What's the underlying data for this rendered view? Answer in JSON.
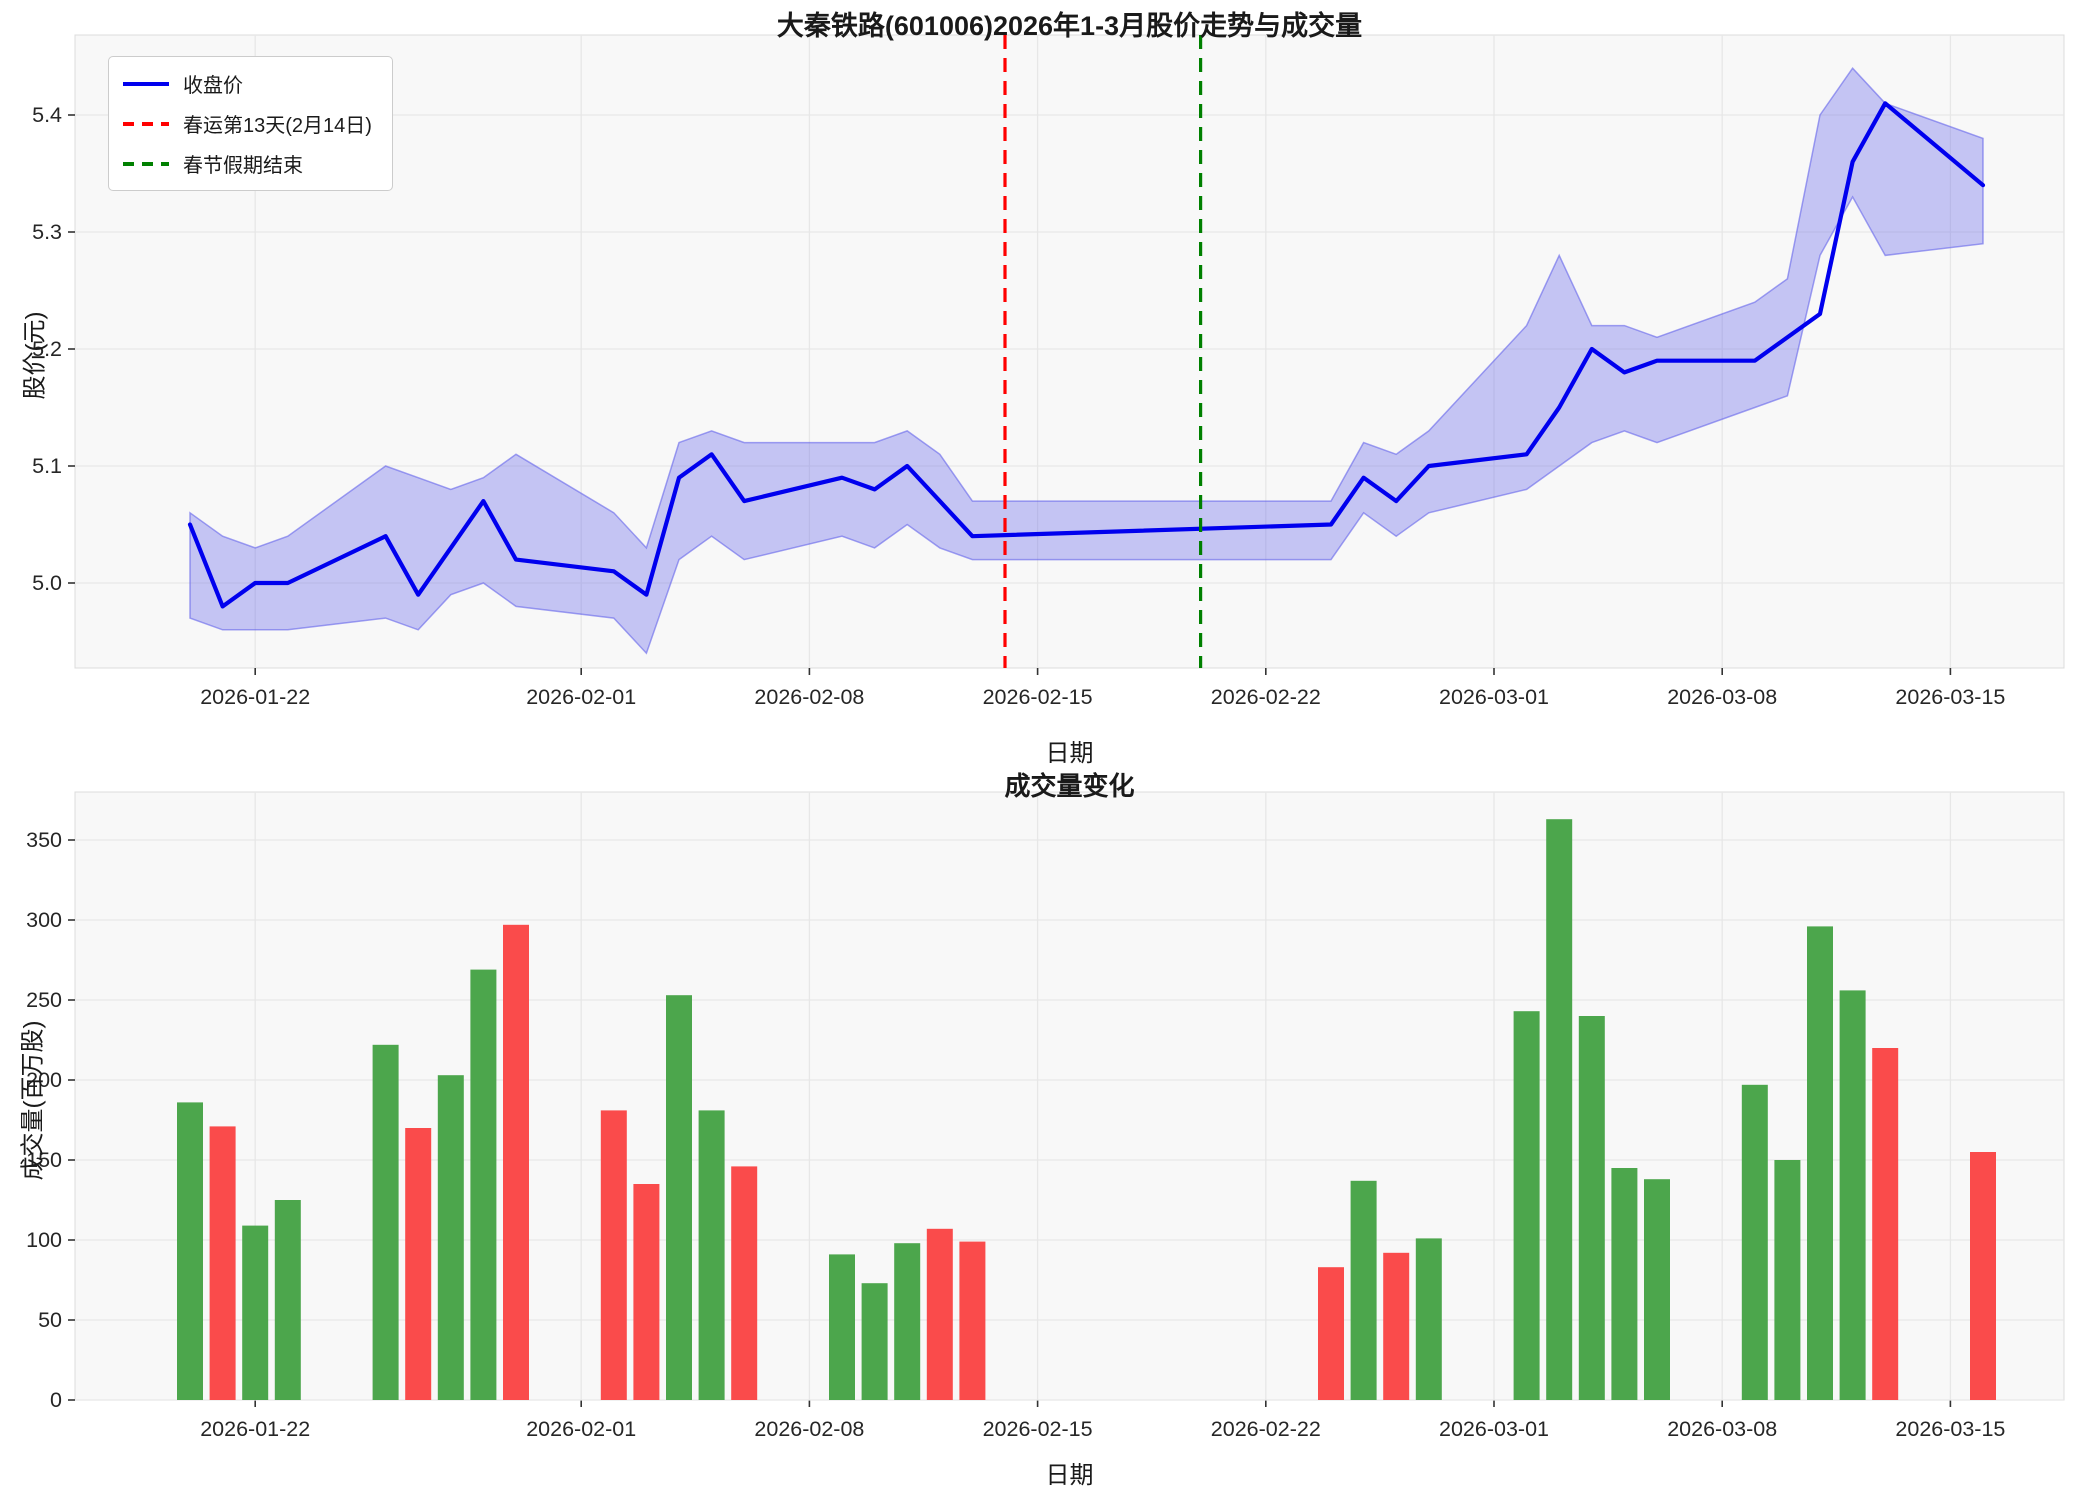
{
  "title": "大秦铁路(601006)2026年1-3月股价走势与成交量",
  "colors": {
    "price_line": "#0000ee",
    "band_fill": "rgba(100,100,235,0.35)",
    "band_edge": "rgba(100,100,235,0.6)",
    "chunyun_line": "#ff0000",
    "holiday_line": "#008000",
    "volume_up": "#4ca64c",
    "volume_down": "#fa4b4b",
    "plot_bg": "#f8f8f8",
    "plot_border": "#dcdcdc",
    "grid": "#e7e7e7",
    "tick": "#333333",
    "text": "#262626"
  },
  "chart_data": [
    {
      "type": "line",
      "title": "大秦铁路(601006)2026年1-3月股价走势与成交量",
      "xlabel": "日期",
      "ylabel": "股价(元)",
      "ylim": [
        4.93,
        5.47
      ],
      "yticks": [
        5.0,
        5.1,
        5.2,
        5.3,
        5.4
      ],
      "ytick_labels": [
        "5.0",
        "5.1",
        "5.2",
        "5.3",
        "5.4"
      ],
      "xticks": [
        {
          "label": "2026-01-22",
          "day": 2
        },
        {
          "label": "2026-02-01",
          "day": 12
        },
        {
          "label": "2026-02-08",
          "day": 19
        },
        {
          "label": "2026-02-15",
          "day": 26
        },
        {
          "label": "2026-02-22",
          "day": 33
        },
        {
          "label": "2026-03-01",
          "day": 40
        },
        {
          "label": "2026-03-08",
          "day": 47
        },
        {
          "label": "2026-03-15",
          "day": 54
        }
      ],
      "grid": true,
      "legend_position": "upper-left",
      "legend": [
        {
          "label": "收盘价",
          "color": "#0000ee",
          "style": "solid"
        },
        {
          "label": "春运第13天(2月14日)",
          "color": "#ff0000",
          "style": "dashed"
        },
        {
          "label": "春节假期结束",
          "color": "#008000",
          "style": "dashed"
        }
      ],
      "series": [
        {
          "name": "收盘价",
          "dates": [
            "2026-01-20",
            "2026-01-21",
            "2026-01-22",
            "2026-01-23",
            "2026-01-26",
            "2026-01-27",
            "2026-01-28",
            "2026-01-29",
            "2026-01-30",
            "2026-02-02",
            "2026-02-03",
            "2026-02-04",
            "2026-02-05",
            "2026-02-06",
            "2026-02-09",
            "2026-02-10",
            "2026-02-11",
            "2026-02-12",
            "2026-02-13",
            "2026-02-24",
            "2026-02-25",
            "2026-02-26",
            "2026-02-27",
            "2026-03-02",
            "2026-03-03",
            "2026-03-04",
            "2026-03-05",
            "2026-03-06",
            "2026-03-09",
            "2026-03-10",
            "2026-03-11",
            "2026-03-12",
            "2026-03-13",
            "2026-03-16"
          ],
          "days": [
            0,
            1,
            2,
            3,
            6,
            7,
            8,
            9,
            10,
            13,
            14,
            15,
            16,
            17,
            20,
            21,
            22,
            23,
            24,
            35,
            36,
            37,
            38,
            41,
            42,
            43,
            44,
            45,
            48,
            49,
            50,
            51,
            52,
            55
          ],
          "close": [
            5.05,
            4.98,
            5.0,
            5.0,
            5.04,
            4.99,
            5.03,
            5.07,
            5.02,
            5.01,
            4.99,
            5.09,
            5.11,
            5.07,
            5.09,
            5.08,
            5.1,
            5.07,
            5.04,
            5.05,
            5.09,
            5.07,
            5.1,
            5.11,
            5.15,
            5.2,
            5.18,
            5.19,
            5.19,
            5.21,
            5.23,
            5.36,
            5.41,
            5.34
          ],
          "band_upper": [
            5.06,
            5.04,
            5.03,
            5.04,
            5.1,
            5.09,
            5.08,
            5.09,
            5.11,
            5.06,
            5.03,
            5.12,
            5.13,
            5.12,
            5.12,
            5.12,
            5.13,
            5.11,
            5.07,
            5.07,
            5.12,
            5.11,
            5.13,
            5.22,
            5.28,
            5.22,
            5.22,
            5.21,
            5.24,
            5.26,
            5.4,
            5.44,
            5.41,
            5.38
          ],
          "band_lower": [
            4.97,
            4.96,
            4.96,
            4.96,
            4.97,
            4.96,
            4.99,
            5.0,
            4.98,
            4.97,
            4.94,
            5.02,
            5.04,
            5.02,
            5.04,
            5.03,
            5.05,
            5.03,
            5.02,
            5.02,
            5.06,
            5.04,
            5.06,
            5.08,
            5.1,
            5.12,
            5.13,
            5.12,
            5.15,
            5.16,
            5.28,
            5.33,
            5.28,
            5.29
          ]
        }
      ],
      "vlines": [
        {
          "label": "春运第13天(2月14日)",
          "date": "2026-02-14",
          "day": 25,
          "color": "#ff0000",
          "style": "dashed"
        },
        {
          "label": "春节假期结束",
          "date": "2026-02-20",
          "day": 31,
          "color": "#008000",
          "style": "dashed"
        }
      ]
    },
    {
      "type": "bar",
      "title": "成交量变化",
      "xlabel": "日期",
      "ylabel": "成交量(百万股)",
      "ylim": [
        0,
        380
      ],
      "yticks": [
        0,
        50,
        100,
        150,
        200,
        250,
        300,
        350
      ],
      "xticks": [
        {
          "label": "2026-01-22",
          "day": 2
        },
        {
          "label": "2026-02-01",
          "day": 12
        },
        {
          "label": "2026-02-08",
          "day": 19
        },
        {
          "label": "2026-02-15",
          "day": 26
        },
        {
          "label": "2026-02-22",
          "day": 33
        },
        {
          "label": "2026-03-01",
          "day": 40
        },
        {
          "label": "2026-03-08",
          "day": 47
        },
        {
          "label": "2026-03-15",
          "day": 54
        }
      ],
      "grid": true,
      "bars": [
        {
          "date": "2026-01-20",
          "day": 0,
          "value": 186,
          "direction": "up"
        },
        {
          "date": "2026-01-21",
          "day": 1,
          "value": 171,
          "direction": "down"
        },
        {
          "date": "2026-01-22",
          "day": 2,
          "value": 109,
          "direction": "up"
        },
        {
          "date": "2026-01-23",
          "day": 3,
          "value": 125,
          "direction": "up"
        },
        {
          "date": "2026-01-26",
          "day": 6,
          "value": 222,
          "direction": "up"
        },
        {
          "date": "2026-01-27",
          "day": 7,
          "value": 170,
          "direction": "down"
        },
        {
          "date": "2026-01-28",
          "day": 8,
          "value": 203,
          "direction": "up"
        },
        {
          "date": "2026-01-29",
          "day": 9,
          "value": 269,
          "direction": "up"
        },
        {
          "date": "2026-01-30",
          "day": 10,
          "value": 297,
          "direction": "down"
        },
        {
          "date": "2026-02-02",
          "day": 13,
          "value": 181,
          "direction": "down"
        },
        {
          "date": "2026-02-03",
          "day": 14,
          "value": 135,
          "direction": "down"
        },
        {
          "date": "2026-02-04",
          "day": 15,
          "value": 253,
          "direction": "up"
        },
        {
          "date": "2026-02-05",
          "day": 16,
          "value": 181,
          "direction": "up"
        },
        {
          "date": "2026-02-06",
          "day": 17,
          "value": 146,
          "direction": "down"
        },
        {
          "date": "2026-02-09",
          "day": 20,
          "value": 91,
          "direction": "up"
        },
        {
          "date": "2026-02-10",
          "day": 21,
          "value": 73,
          "direction": "up"
        },
        {
          "date": "2026-02-11",
          "day": 22,
          "value": 98,
          "direction": "up"
        },
        {
          "date": "2026-02-12",
          "day": 23,
          "value": 107,
          "direction": "down"
        },
        {
          "date": "2026-02-13",
          "day": 24,
          "value": 99,
          "direction": "down"
        },
        {
          "date": "2026-02-24",
          "day": 35,
          "value": 83,
          "direction": "down"
        },
        {
          "date": "2026-02-25",
          "day": 36,
          "value": 137,
          "direction": "up"
        },
        {
          "date": "2026-02-26",
          "day": 37,
          "value": 92,
          "direction": "down"
        },
        {
          "date": "2026-02-27",
          "day": 38,
          "value": 101,
          "direction": "up"
        },
        {
          "date": "2026-03-02",
          "day": 41,
          "value": 243,
          "direction": "up"
        },
        {
          "date": "2026-03-03",
          "day": 42,
          "value": 363,
          "direction": "up"
        },
        {
          "date": "2026-03-04",
          "day": 43,
          "value": 240,
          "direction": "up"
        },
        {
          "date": "2026-03-05",
          "day": 44,
          "value": 145,
          "direction": "up"
        },
        {
          "date": "2026-03-06",
          "day": 45,
          "value": 138,
          "direction": "up"
        },
        {
          "date": "2026-03-09",
          "day": 48,
          "value": 197,
          "direction": "up"
        },
        {
          "date": "2026-03-10",
          "day": 49,
          "value": 150,
          "direction": "up"
        },
        {
          "date": "2026-03-11",
          "day": 50,
          "value": 296,
          "direction": "up"
        },
        {
          "date": "2026-03-12",
          "day": 51,
          "value": 256,
          "direction": "up"
        },
        {
          "date": "2026-03-13",
          "day": 52,
          "value": 220,
          "direction": "down"
        },
        {
          "date": "2026-03-16",
          "day": 55,
          "value": 155,
          "direction": "down"
        }
      ]
    }
  ]
}
